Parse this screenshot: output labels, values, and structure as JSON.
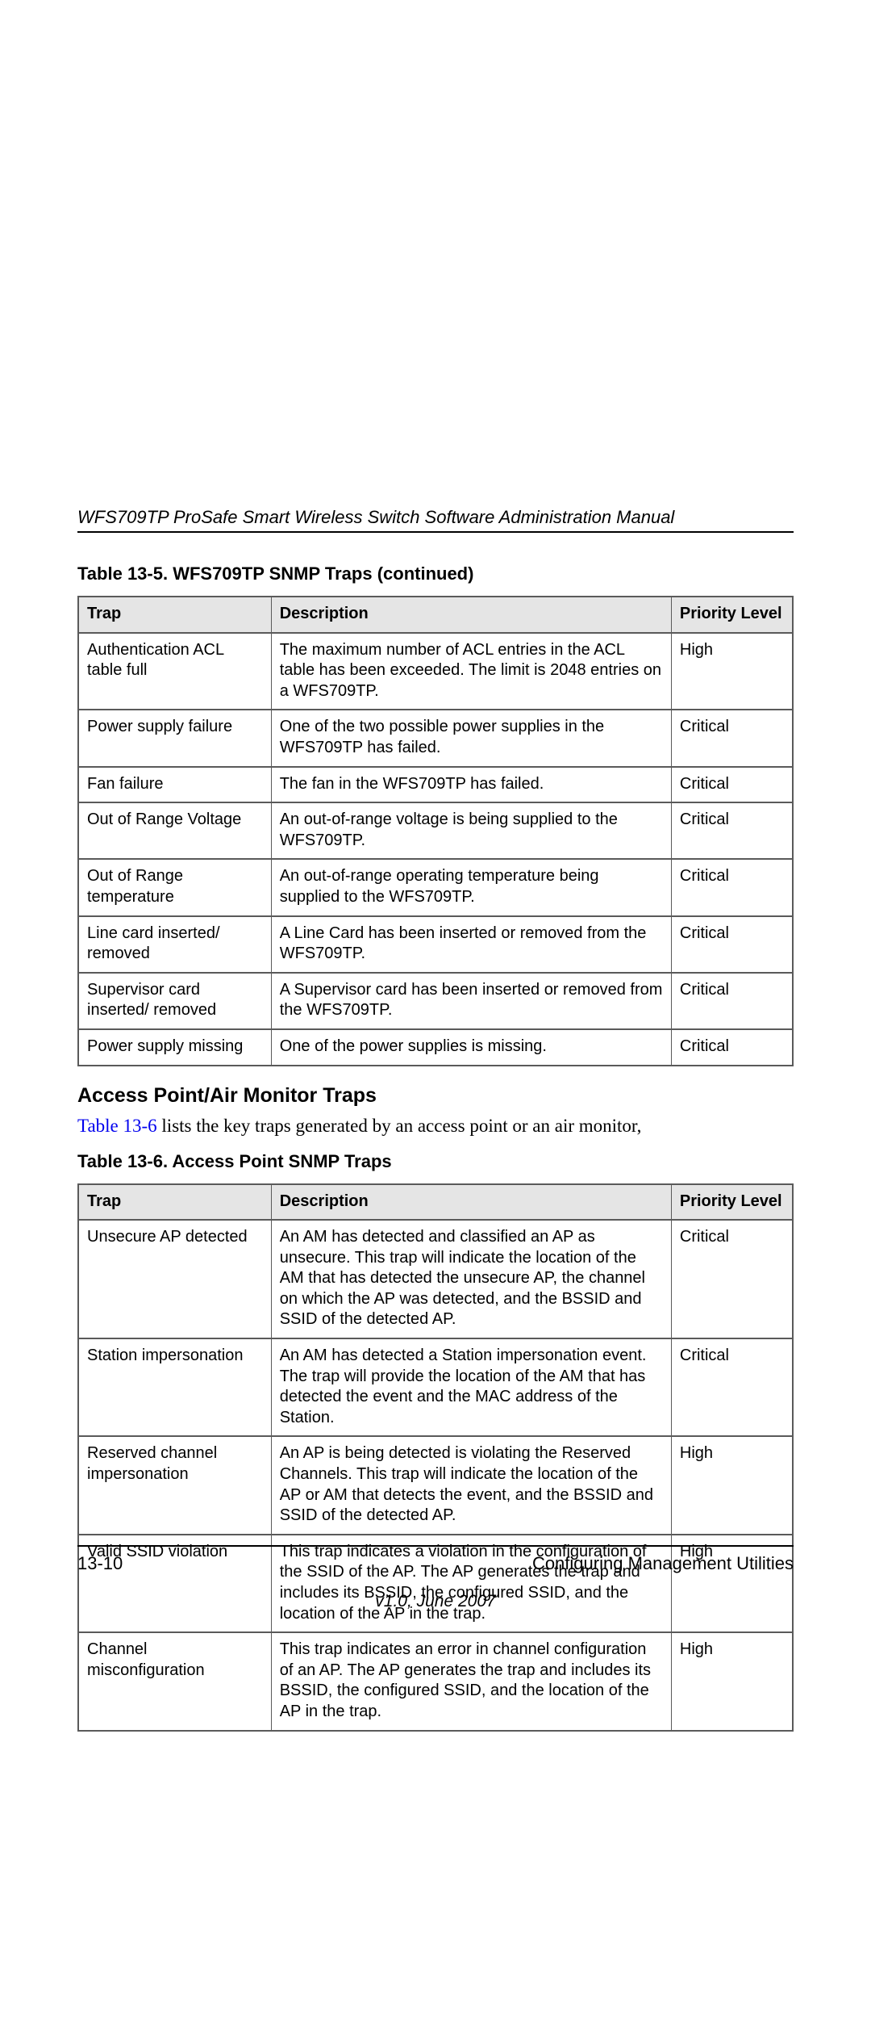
{
  "doc_title": "WFS709TP ProSafe Smart Wireless Switch Software Administration Manual",
  "table1": {
    "title": "Table 13-5.  WFS709TP SNMP Traps (continued)",
    "headers": {
      "trap": "Trap",
      "desc": "Description",
      "prio": "Priority Level"
    },
    "rows": [
      {
        "trap": "Authentication ACL table full",
        "desc": "The maximum number of ACL entries in the ACL table has been exceeded. The limit is 2048 entries on a WFS709TP.",
        "prio": " High"
      },
      {
        "trap": "Power supply failure",
        "desc": "One of the two possible power supplies in the WFS709TP has failed.",
        "prio": "Critical"
      },
      {
        "trap": "Fan failure",
        "desc": "The fan in the WFS709TP has failed.",
        "prio": "Critical"
      },
      {
        "trap": "Out of Range Voltage",
        "desc": "An out-of-range voltage is being supplied to the WFS709TP.",
        "prio": "Critical"
      },
      {
        "trap": "Out of Range temperature",
        "desc": "An out-of-range operating temperature being supplied to the WFS709TP.",
        "prio": "Critical"
      },
      {
        "trap": "Line card inserted/ removed",
        "desc": "A Line Card has been inserted or removed from the WFS709TP.",
        "prio": "Critical"
      },
      {
        "trap": "Supervisor card inserted/ removed",
        "desc": "A Supervisor card has been inserted or removed from the WFS709TP.",
        "prio": "Critical"
      },
      {
        "trap": "Power supply missing",
        "desc": "One of the power supplies is missing.",
        "prio": "Critical"
      }
    ]
  },
  "section_title": "Access Point/Air Monitor Traps",
  "body": {
    "link_text": "Table 13-6",
    "rest_text": " lists the key traps generated by an access point or an air monitor,"
  },
  "table2": {
    "title": "Table 13-6.  Access Point SNMP Traps",
    "headers": {
      "trap": "Trap",
      "desc": "Description",
      "prio": "Priority Level"
    },
    "rows": [
      {
        "trap": "Unsecure AP detected",
        "desc": "An AM has detected and classified an AP as unsecure. This trap will indicate the location of the AM that has detected the unsecure AP, the channel on which the AP was detected, and the BSSID and SSID of the detected AP.",
        "prio": "Critical"
      },
      {
        "trap": "Station impersonation",
        "desc": "An AM has detected a Station impersonation event. The trap will provide the location of the AM that has detected the event and the MAC address of the Station.",
        "prio": "Critical"
      },
      {
        "trap": "Reserved channel impersonation",
        "desc": "An AP is being detected is violating the Reserved Channels. This trap will indicate the location of the AP or AM that detects the event, and the BSSID and SSID of the detected AP.",
        "prio": "High"
      },
      {
        "trap": "Valid SSID violation",
        "desc": "This trap indicates a violation in the configuration of the SSID of the AP. The AP generates the trap and includes its BSSID, the configured SSID, and the location of the AP in the trap.",
        "prio": "High"
      },
      {
        "trap": "Channel misconfiguration",
        "desc": "This trap indicates an error in channel configuration of an AP. The AP generates the trap and includes its BSSID, the configured SSID, and the location of the AP in the trap.",
        "prio": "High"
      }
    ]
  },
  "footer": {
    "page": "13-10",
    "chapter": "Configuring Management Utilities",
    "version": "v1.0, June 2007"
  },
  "colors": {
    "text": "#000000",
    "header_bg": "#e5e5e5",
    "border": "#5a5a5a",
    "link": "#0000ee",
    "page_bg": "#ffffff"
  }
}
